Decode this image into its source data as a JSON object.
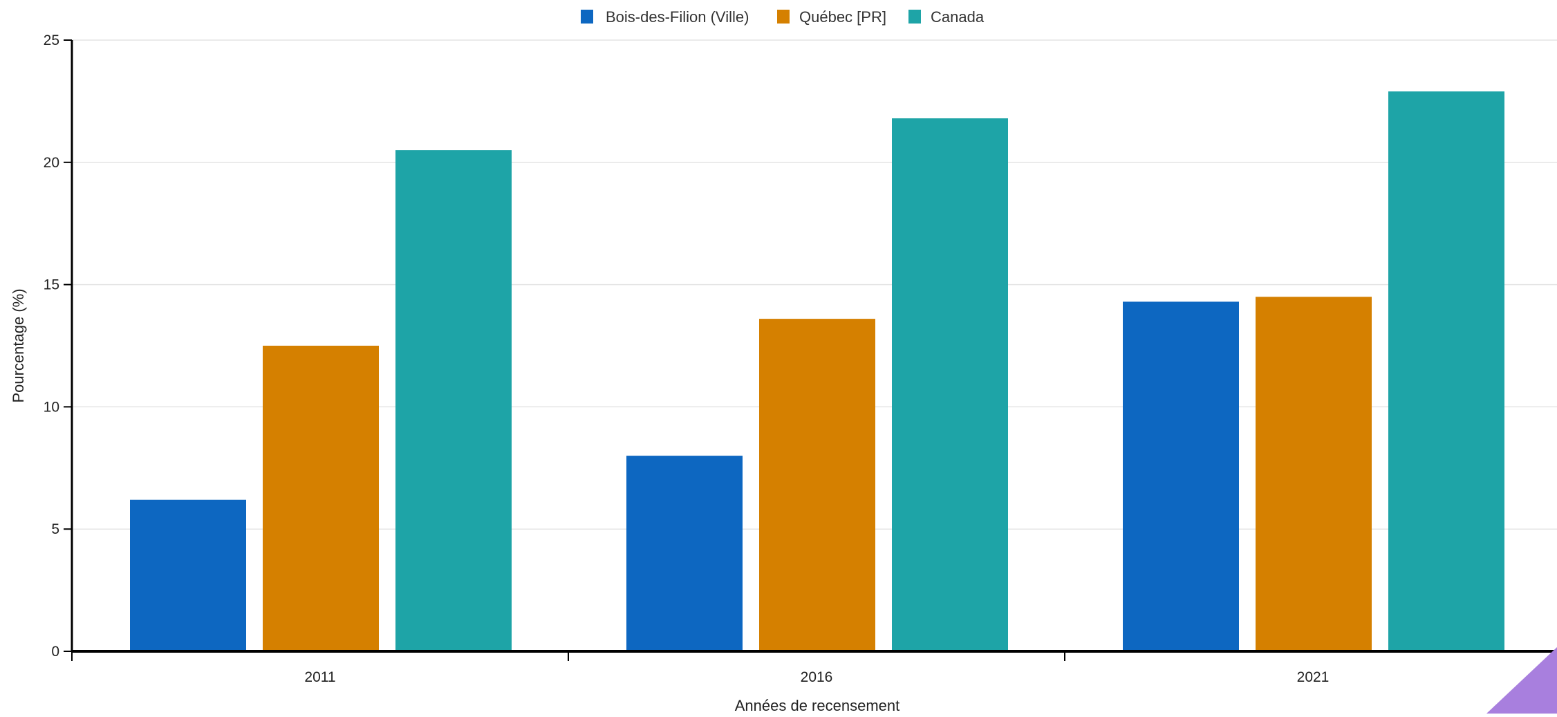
{
  "chart_data": {
    "type": "bar",
    "categories": [
      "2011",
      "2016",
      "2021"
    ],
    "series": [
      {
        "name": "Bois-des-Filion (Ville)",
        "color": "#0d67c1",
        "values": [
          6.2,
          8.0,
          14.3
        ]
      },
      {
        "name": "Québec [PR]",
        "color": "#d58000",
        "values": [
          12.5,
          13.6,
          14.5
        ]
      },
      {
        "name": "Canada",
        "color": "#1ea4a7",
        "values": [
          20.5,
          21.8,
          22.9
        ]
      }
    ],
    "xlabel": "Années de recensement",
    "ylabel": "Pourcentage (%)",
    "ylim": [
      0,
      25
    ],
    "yticks": [
      "0",
      "5",
      "10",
      "15",
      "20",
      "25"
    ],
    "grid": true,
    "legend_position": "top-center"
  },
  "corner_accent_color": "#a87fde"
}
